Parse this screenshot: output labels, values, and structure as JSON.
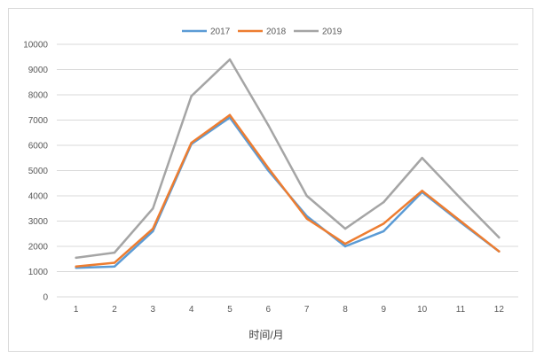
{
  "chart_data": {
    "type": "line",
    "title": "",
    "xlabel": "时间/月",
    "ylabel": "",
    "categories": [
      "1",
      "2",
      "3",
      "4",
      "5",
      "6",
      "7",
      "8",
      "9",
      "10",
      "11",
      "12"
    ],
    "ylim": [
      0,
      10000
    ],
    "yticks": [
      "0",
      "1000",
      "2000",
      "3000",
      "4000",
      "5000",
      "6000",
      "7000",
      "8000",
      "9000",
      "10000"
    ],
    "grid": true,
    "legend_position": "top-center",
    "series": [
      {
        "name": "2017",
        "color": "#5b9bd5",
        "values": [
          1150,
          1200,
          2600,
          6050,
          7100,
          5000,
          3200,
          2000,
          2600,
          4150,
          2950,
          1800
        ]
      },
      {
        "name": "2018",
        "color": "#ed7d31",
        "values": [
          1200,
          1350,
          2700,
          6100,
          7200,
          5100,
          3100,
          2100,
          2900,
          4200,
          3000,
          1800
        ]
      },
      {
        "name": "2019",
        "color": "#a5a5a5",
        "values": [
          1550,
          1750,
          3500,
          7950,
          9400,
          6800,
          4000,
          2700,
          3750,
          5500,
          3900,
          2350
        ]
      }
    ]
  }
}
